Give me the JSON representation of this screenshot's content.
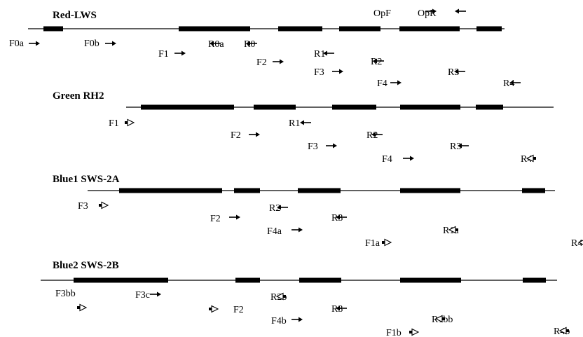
{
  "genes": [
    {
      "name": "Red-LWS",
      "primers": [
        {
          "label": "OpF",
          "dir": "F",
          "style": "solid"
        },
        {
          "label": "OpR",
          "dir": "R",
          "style": "solid"
        },
        {
          "label": "F0a",
          "dir": "F",
          "style": "solid"
        },
        {
          "label": "F0b",
          "dir": "F",
          "style": "solid"
        },
        {
          "label": "R0a",
          "dir": "R",
          "style": "solid"
        },
        {
          "label": "R0",
          "dir": "R",
          "style": "solid"
        },
        {
          "label": "F1",
          "dir": "F",
          "style": "solid"
        },
        {
          "label": "R1",
          "dir": "R",
          "style": "solid"
        },
        {
          "label": "F2",
          "dir": "F",
          "style": "solid"
        },
        {
          "label": "R2",
          "dir": "R",
          "style": "solid"
        },
        {
          "label": "F3",
          "dir": "F",
          "style": "solid"
        },
        {
          "label": "R3",
          "dir": "R",
          "style": "solid"
        },
        {
          "label": "F4",
          "dir": "F",
          "style": "solid"
        },
        {
          "label": "R4",
          "dir": "R",
          "style": "solid"
        }
      ]
    },
    {
      "name": "Green RH2",
      "primers": [
        {
          "label": "F1",
          "dir": "F",
          "style": "open"
        },
        {
          "label": "R1",
          "dir": "R",
          "style": "solid"
        },
        {
          "label": "F2",
          "dir": "F",
          "style": "solid"
        },
        {
          "label": "R2",
          "dir": "R",
          "style": "solid"
        },
        {
          "label": "F3",
          "dir": "F",
          "style": "solid"
        },
        {
          "label": "R3",
          "dir": "R",
          "style": "solid"
        },
        {
          "label": "F4",
          "dir": "F",
          "style": "solid"
        },
        {
          "label": "R4",
          "dir": "R",
          "style": "open"
        }
      ]
    },
    {
      "name": "Blue1 SWS-2A",
      "primers": [
        {
          "label": "F3",
          "dir": "F",
          "style": "open"
        },
        {
          "label": "R2",
          "dir": "R",
          "style": "solid"
        },
        {
          "label": "F2",
          "dir": "F",
          "style": "solid"
        },
        {
          "label": "R3",
          "dir": "R",
          "style": "solid"
        },
        {
          "label": "F4a",
          "dir": "F",
          "style": "solid"
        },
        {
          "label": "R1a",
          "dir": "R",
          "style": "open"
        },
        {
          "label": "F1a",
          "dir": "F",
          "style": "open"
        },
        {
          "label": "R4",
          "dir": "R",
          "style": "open"
        }
      ]
    },
    {
      "name": "Blue2 SWS-2B",
      "primers": [
        {
          "label": "F3bb",
          "dir": "F",
          "style": "open"
        },
        {
          "label": "F3c",
          "dir": "F",
          "style": "solid"
        },
        {
          "label": "F2",
          "dir": "F",
          "style": "open"
        },
        {
          "label": "R2b",
          "dir": "R",
          "style": "open"
        },
        {
          "label": "R3",
          "dir": "R",
          "style": "solid"
        },
        {
          "label": "F4b",
          "dir": "F",
          "style": "solid"
        },
        {
          "label": "R1bb",
          "dir": "R",
          "style": "open"
        },
        {
          "label": "F1b",
          "dir": "F",
          "style": "open"
        },
        {
          "label": "R4b",
          "dir": "R",
          "style": "open"
        }
      ]
    }
  ]
}
